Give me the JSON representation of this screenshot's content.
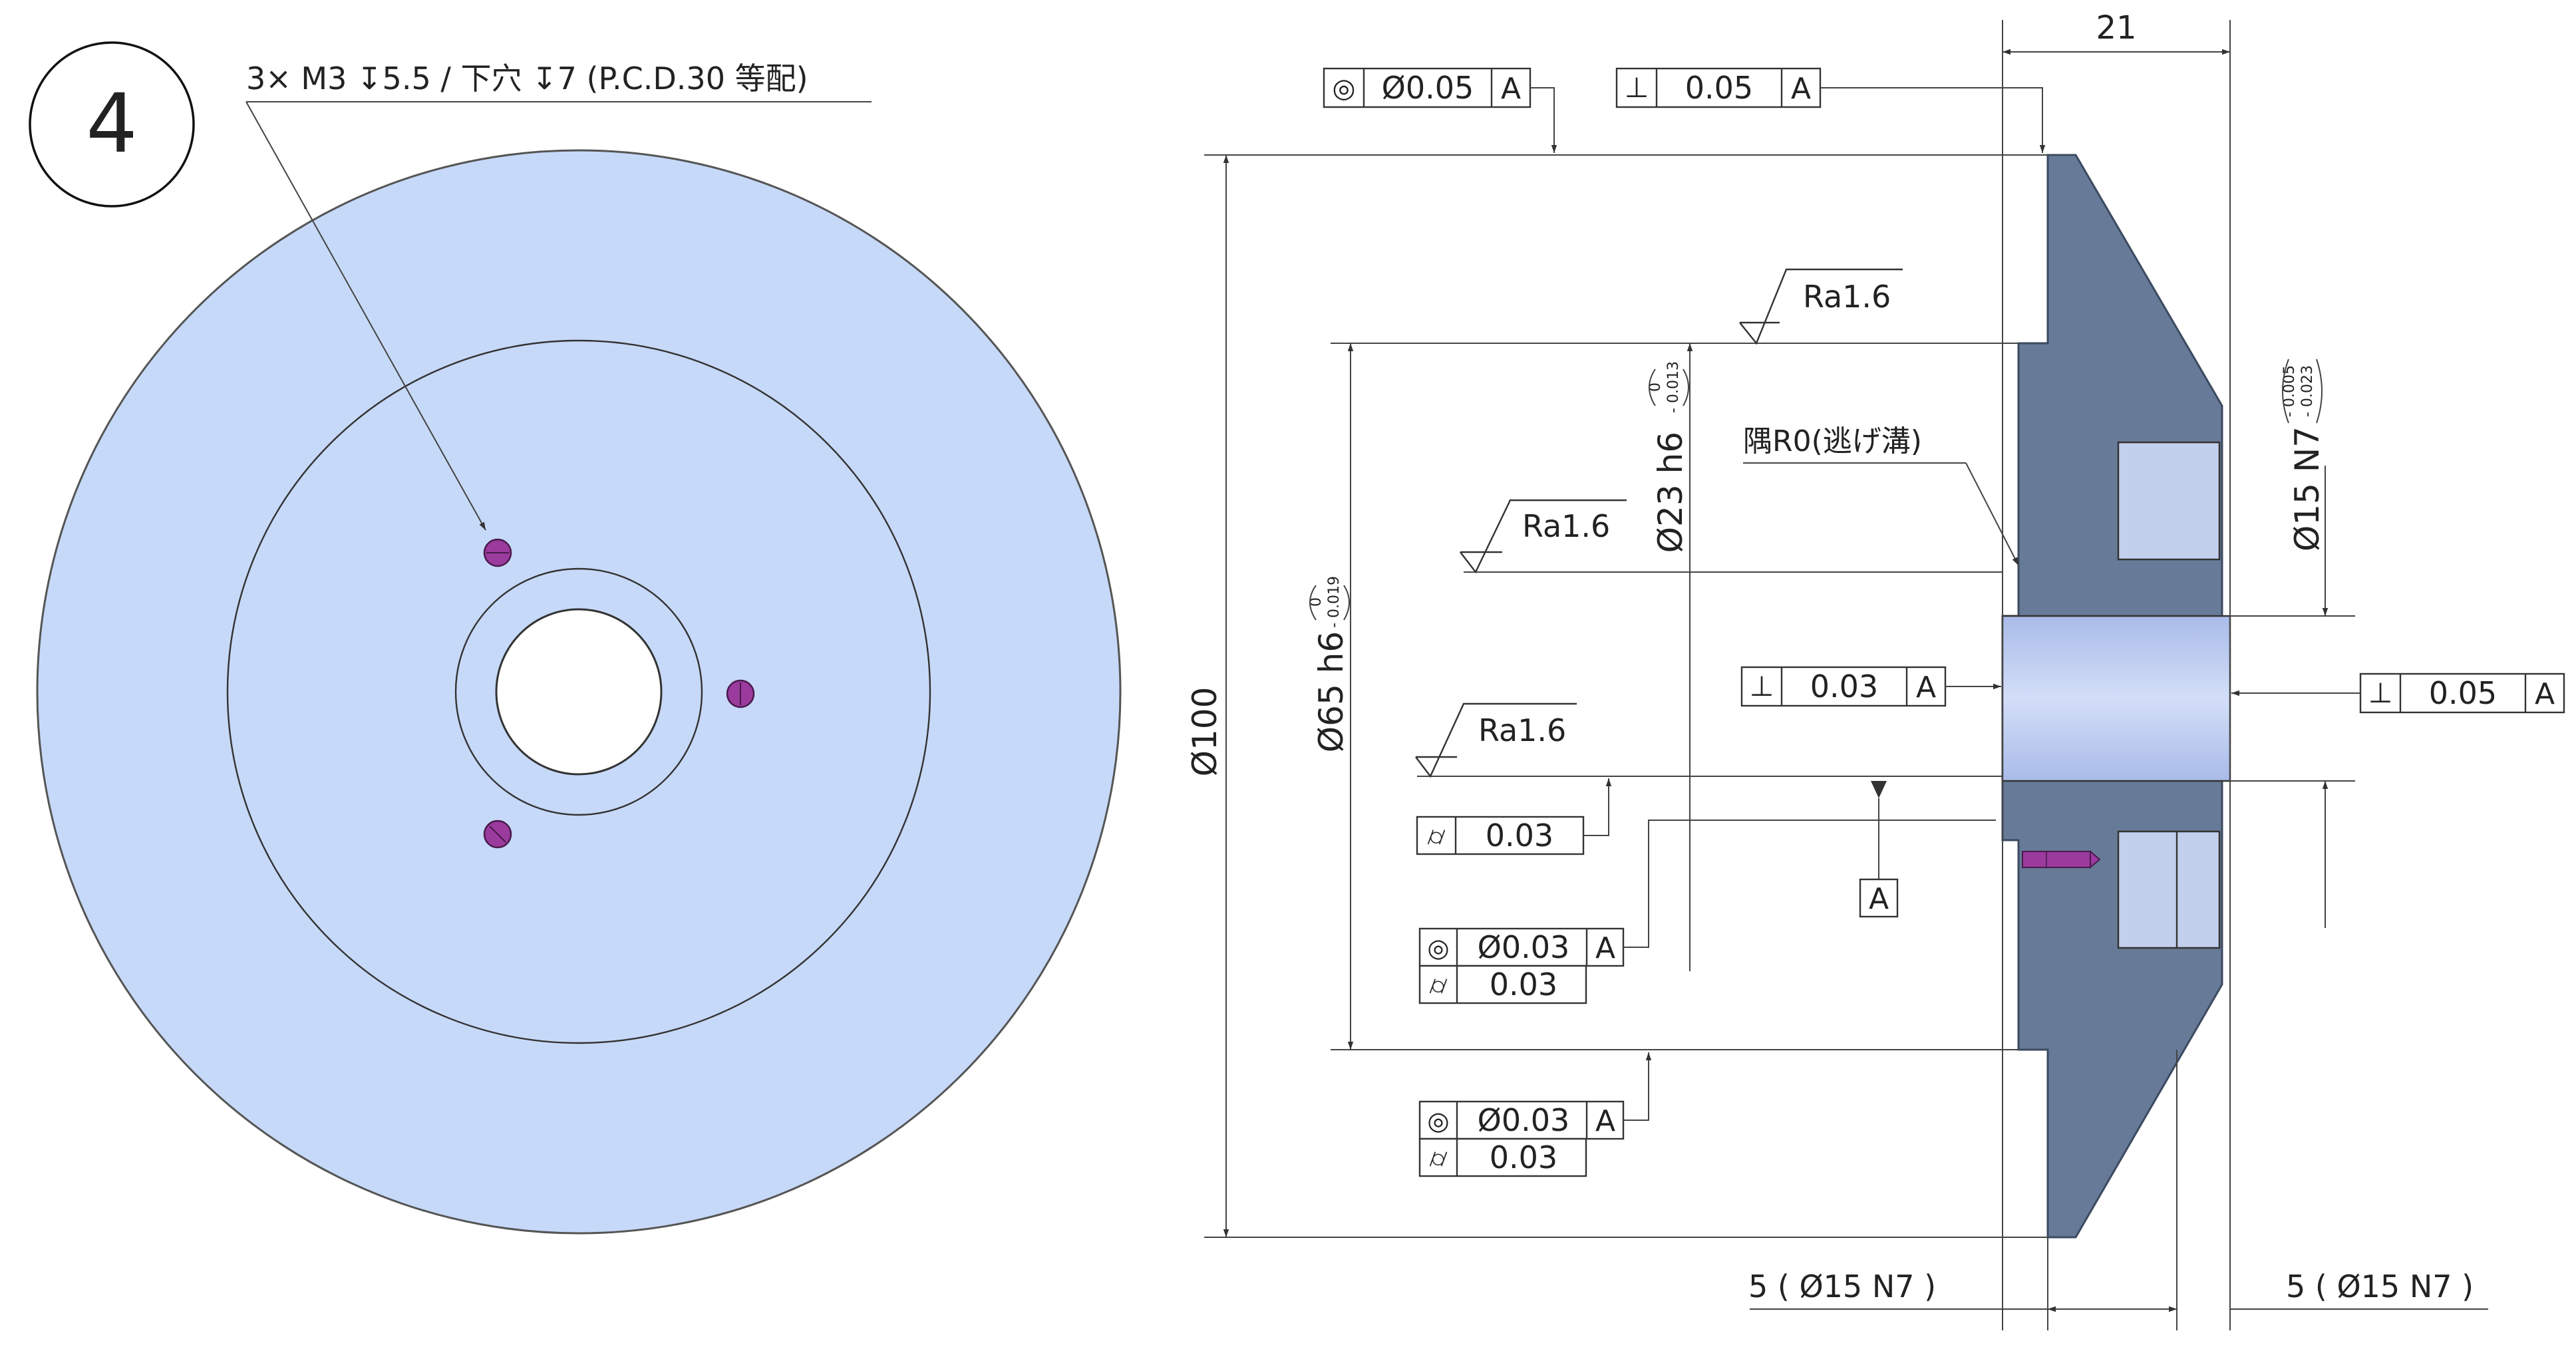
{
  "view_number": "4",
  "hole_callout": "3× M3 ↧5.5 / 下穴 ↧7 (P.C.D.30 等配)",
  "colors": {
    "disc_fill": "#c6d9f8",
    "section_fill": "#677a98",
    "bore_fill": "#bccbef",
    "hole_fill": "#9b3b9e",
    "line": "#333333"
  },
  "dimensions": {
    "width_21": "21",
    "dia_100": "Ø100",
    "dia_65": "Ø65 h6",
    "dia_65_tol_upper": "0",
    "dia_65_tol_lower": "- 0.019",
    "dia_23": "Ø23 h6",
    "dia_23_tol_upper": "0",
    "dia_23_tol_lower": "- 0.013",
    "dia_15": "Ø15 N7",
    "dia_15_tol_upper": "- 0.005",
    "dia_15_tol_lower": "- 0.023",
    "bottom_left": "5 ( Ø15 N7 )",
    "bottom_right": "5 ( Ø15 N7 )"
  },
  "notes": {
    "corner": "隅R0(逃げ溝)"
  },
  "surface_finish": [
    "Ra1.6",
    "Ra1.6",
    "Ra1.6"
  ],
  "datum": "A",
  "gdt": {
    "top_concentricity": {
      "symbol": "◎",
      "value": "Ø0.05",
      "datum": "A"
    },
    "top_perpendicularity": {
      "symbol": "⊥",
      "value": "0.05",
      "datum": "A"
    },
    "mid_perpendicularity": {
      "symbol": "⊥",
      "value": "0.03",
      "datum": "A"
    },
    "right_perpendicularity": {
      "symbol": "⊥",
      "value": "0.05",
      "datum": "A"
    },
    "cylindricity_1": {
      "symbol": "⌭",
      "value": "0.03"
    },
    "concentricity_2": {
      "symbol": "◎",
      "value": "Ø0.03",
      "datum": "A"
    },
    "cylindricity_2": {
      "symbol": "⌭",
      "value": "0.03"
    },
    "concentricity_3": {
      "symbol": "◎",
      "value": "Ø0.03",
      "datum": "A"
    },
    "cylindricity_3": {
      "symbol": "⌭",
      "value": "0.03"
    }
  }
}
